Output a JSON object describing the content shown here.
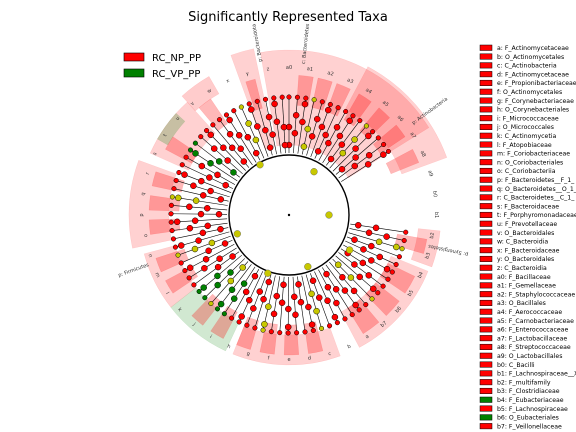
{
  "title": "Significantly Represented Taxa",
  "colors": {
    "np": "#ff0000",
    "vp": "#008000",
    "np_shade": "#ff0000",
    "vp_shade": "#008000",
    "ns": "#c8c800"
  },
  "legend": [
    {
      "label": "RC_NP_PP",
      "color": "#ff0000"
    },
    {
      "label": "RC_VP_PP",
      "color": "#008000"
    }
  ],
  "outer_labels": [
    "p: Bacteroidota",
    "c: Bacteroidetes",
    "p: Actinobacteria",
    "p: Synergistetes",
    "p: Firmicutes"
  ],
  "clade_labels": [
    "a0",
    "a1",
    "a2",
    "a3",
    "a4",
    "a5",
    "a6",
    "a7",
    "a8",
    "a9",
    "b0",
    "b1",
    "b2",
    "b3",
    "b4",
    "b5",
    "b6",
    "b7",
    "a",
    "b",
    "c",
    "d",
    "e",
    "f",
    "g",
    "h",
    "i",
    "j",
    "k",
    "l",
    "m",
    "n",
    "o",
    "p",
    "q",
    "r",
    "s",
    "t",
    "u",
    "v",
    "w",
    "x",
    "y",
    "z"
  ],
  "key_list": [
    {
      "text": "a: F_Actinomycetaceae",
      "group": "np"
    },
    {
      "text": "b: O_Actinomycetales",
      "group": "np"
    },
    {
      "text": "c: C_Actinobacteria",
      "group": "np"
    },
    {
      "text": "d: F_Actinomycetaceae",
      "group": "np"
    },
    {
      "text": "e: F_Propionibacteriaceae",
      "group": "np"
    },
    {
      "text": "f: O_Actinomycetales",
      "group": "np"
    },
    {
      "text": "g: F_Corynebacteriaceae",
      "group": "np"
    },
    {
      "text": "h: O_Corynebacteriales",
      "group": "np"
    },
    {
      "text": "i: F_Micrococcaceae",
      "group": "np"
    },
    {
      "text": "j: O_Micrococcales",
      "group": "np"
    },
    {
      "text": "k: C_Actinomycetia",
      "group": "np"
    },
    {
      "text": "l: F_Atopobiaceae",
      "group": "np"
    },
    {
      "text": "m: F_Coriobacteriaceae",
      "group": "np"
    },
    {
      "text": "n: O_Coriobacteriales",
      "group": "np"
    },
    {
      "text": "o: C_Coriobacteriia",
      "group": "np"
    },
    {
      "text": "p: F_Bacteroidetes__F_1_",
      "group": "np"
    },
    {
      "text": "q: O_Bacteroidetes__O_1_",
      "group": "np"
    },
    {
      "text": "r: C_Bacteroidetes__C_1_",
      "group": "np"
    },
    {
      "text": "s: F_Bacteroidaceae",
      "group": "np"
    },
    {
      "text": "t: F_Porphyromonadaceae",
      "group": "np"
    },
    {
      "text": "u: F_Prevotellaceae",
      "group": "np"
    },
    {
      "text": "v: O_Bacteroidales",
      "group": "np"
    },
    {
      "text": "w: C_Bacteroidia",
      "group": "np"
    },
    {
      "text": "x: F_Bacteroidaceae",
      "group": "np"
    },
    {
      "text": "y: O_Bacteroidales",
      "group": "np"
    },
    {
      "text": "z: C_Bacteroidia",
      "group": "np"
    },
    {
      "text": "a0: F_Bacillaceae",
      "group": "np"
    },
    {
      "text": "a1: F_Gemellaceae",
      "group": "np"
    },
    {
      "text": "a2: F_Staphylococcaceae",
      "group": "np"
    },
    {
      "text": "a3: O_Bacillales",
      "group": "np"
    },
    {
      "text": "a4: F_Aerococcaceae",
      "group": "np"
    },
    {
      "text": "a5: F_Carnobacteriaceae",
      "group": "np"
    },
    {
      "text": "a6: F_Enterococcaceae",
      "group": "np"
    },
    {
      "text": "a7: F_Lactobacillaceae",
      "group": "np"
    },
    {
      "text": "a8: F_Streptococcaceae",
      "group": "np"
    },
    {
      "text": "a9: O_Lactobacillales",
      "group": "np"
    },
    {
      "text": "b0: C_Bacilli",
      "group": "np"
    },
    {
      "text": "b1: F_Lachnospiraceae__X",
      "group": "np"
    },
    {
      "text": "b2: F_multifamily",
      "group": "np"
    },
    {
      "text": "b3: F_Clostridiaceae",
      "group": "np"
    },
    {
      "text": "b4: F_Eubacteriaceae",
      "group": "vp"
    },
    {
      "text": "b5: F_Lachnospiraceae",
      "group": "np"
    },
    {
      "text": "b6: O_Eubacteriales",
      "group": "vp"
    },
    {
      "text": "b7: F_Veillonellaceae",
      "group": "np"
    }
  ]
}
